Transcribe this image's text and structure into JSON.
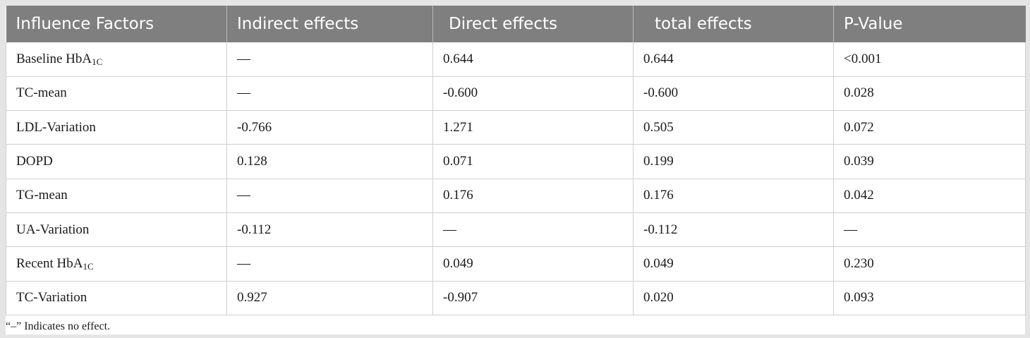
{
  "table": {
    "headers": [
      "Influence Factors",
      "Indirect effects",
      "Direct effects",
      "total effects",
      "P-Value"
    ],
    "rows": [
      {
        "factor": "Baseline HbA",
        "sub": "1C",
        "indirect": "—",
        "direct": "0.644",
        "total": "0.644",
        "p": "<0.001"
      },
      {
        "factor": "TC-mean",
        "sub": "",
        "indirect": "—",
        "direct": "-0.600",
        "total": "-0.600",
        "p": "0.028"
      },
      {
        "factor": "LDL-Variation",
        "sub": "",
        "indirect": "-0.766",
        "direct": "1.271",
        "total": "0.505",
        "p": "0.072"
      },
      {
        "factor": "DOPD",
        "sub": "",
        "indirect": "0.128",
        "direct": "0.071",
        "total": "0.199",
        "p": "0.039"
      },
      {
        "factor": "TG-mean",
        "sub": "",
        "indirect": "—",
        "direct": "0.176",
        "total": "0.176",
        "p": "0.042"
      },
      {
        "factor": "UA-Variation",
        "sub": "",
        "indirect": "-0.112",
        "direct": "—",
        "total": "-0.112",
        "p": "—"
      },
      {
        "factor": "Recent HbA",
        "sub": "1C",
        "indirect": "—",
        "direct": "0.049",
        "total": "0.049",
        "p": "0.230"
      },
      {
        "factor": "TC-Variation",
        "sub": "",
        "indirect": "0.927",
        "direct": "-0.907",
        "total": "0.020",
        "p": "0.093"
      }
    ]
  },
  "footnote": "“–” Indicates no effect."
}
